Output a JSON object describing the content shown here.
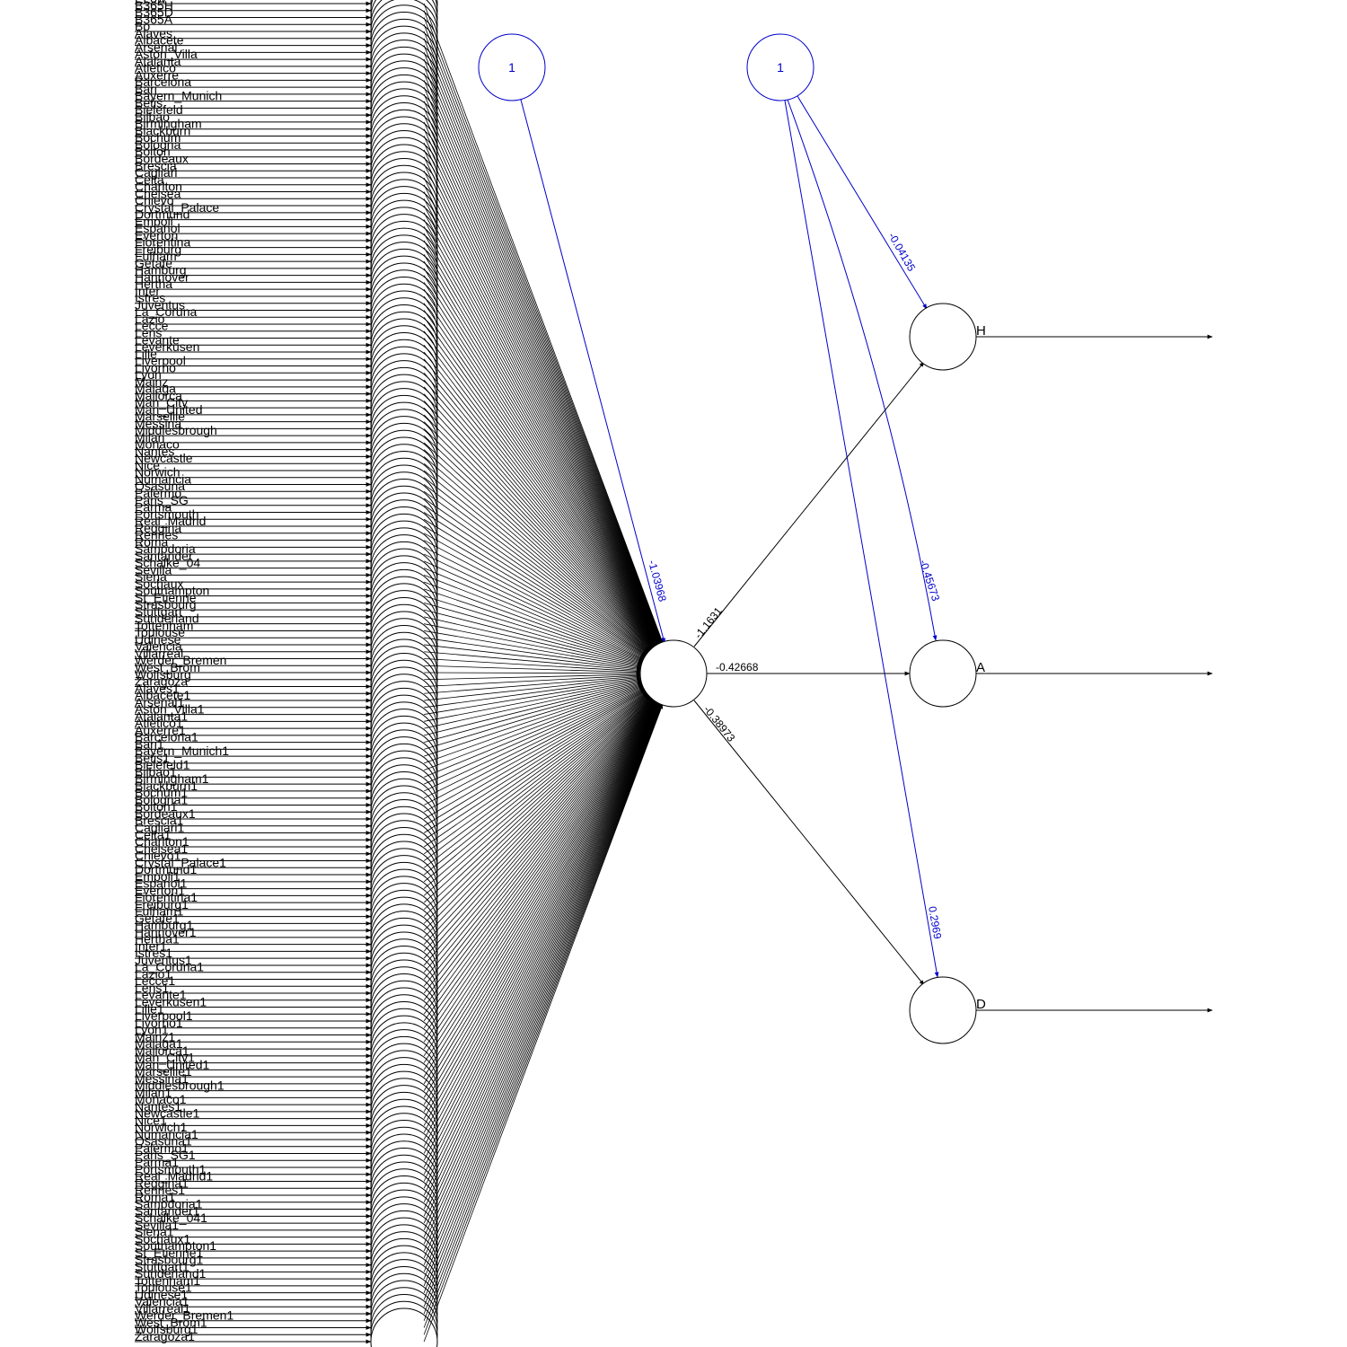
{
  "network": {
    "colors": {
      "synapse": "#000000",
      "bias": "#0000cc"
    },
    "inputs_group_1": [
      "ELow",
      "B365H",
      "B365D",
      "B365A",
      "Bo",
      "Alaves",
      "Albacete",
      "Arsenal",
      "Aston_Villa",
      "Atalanta",
      "Atletico",
      "Auxerre",
      "Barcelona",
      "Bari",
      "Bayern_Munich",
      "Betis",
      "Bielefeld",
      "Bilbao",
      "Birmingham",
      "Blackburn",
      "Bochum",
      "Bologna",
      "Bolton",
      "Bordeaux",
      "Brescia",
      "Cagliari",
      "Celta",
      "Charlton",
      "Chelsea",
      "Chievo",
      "Crystal_Palace",
      "Dortmund",
      "Empoli",
      "Espanol",
      "Everton",
      "Fiorentina",
      "Freiburg",
      "Fulham",
      "Getafe",
      "Hamburg",
      "Hannover",
      "Hertha",
      "Inter",
      "Istres",
      "Juventus",
      "La_Coruna",
      "Lazio",
      "Lecce",
      "Lens",
      "Levante",
      "Leverkusen",
      "Lille",
      "Liverpool",
      "Livorno",
      "Lyon",
      "Mainz",
      "Malaga",
      "Mallorca",
      "Man_City",
      "Man_United",
      "Marseille",
      "Messina",
      "Middlesbrough",
      "Milan",
      "Monaco",
      "Nantes",
      "Newcastle",
      "Nice",
      "Norwich",
      "Numancia",
      "Osasuna",
      "Palermo",
      "Paris_SG",
      "Parma",
      "Portsmouth",
      "Real_Madrid",
      "Reggina",
      "Rennes",
      "Roma",
      "Sampdoria",
      "Santander",
      "Schalke_04",
      "Sevilla",
      "Siena",
      "Sochaux",
      "Southampton",
      "St_Etienne",
      "Strasbourg",
      "Stuttgart",
      "Sunderland",
      "Tottenham",
      "Toulouse",
      "Udinese",
      "Valencia",
      "Villarreal",
      "Werder_Bremen",
      "West_Brom",
      "Wolfsburg",
      "Zaragoza"
    ],
    "inputs_group_2": [
      "Alaves1",
      "Albacete1",
      "Arsenal1",
      "Aston_Villa1",
      "Atalanta1",
      "Atletico1",
      "Auxerre1",
      "Barcelona1",
      "Bari1",
      "Bayern_Munich1",
      "Betis1",
      "Bielefeld1",
      "Bilbao1",
      "Birmingham1",
      "Blackburn1",
      "Bochum1",
      "Bologna1",
      "Bolton1",
      "Bordeaux1",
      "Brescia1",
      "Cagliari1",
      "Celta1",
      "Charlton1",
      "Chelsea1",
      "Chievo1",
      "Crystal_Palace1",
      "Dortmund1",
      "Empoli1",
      "Espanol1",
      "Everton1",
      "Fiorentina1",
      "Freiburg1",
      "Fulham1",
      "Getafe1",
      "Hamburg1",
      "Hannover1",
      "Hertha1",
      "Inter1",
      "Istres1",
      "Juventus1",
      "La_Coruna1",
      "Lazio1",
      "Lecce1",
      "Lens1",
      "Levante1",
      "Leverkusen1",
      "Lille1",
      "Liverpool1",
      "Livorno1",
      "Lyon1",
      "Mainz1",
      "Malaga1",
      "Mallorca1",
      "Man_City1",
      "Man_United1",
      "Marseille1",
      "Messina1",
      "Middlesbrough1",
      "Milan1",
      "Monaco1",
      "Nantes1",
      "Newcastle1",
      "Nice1",
      "Norwich1",
      "Numancia1",
      "Osasuna1",
      "Palermo1",
      "Paris_SG1",
      "Parma1",
      "Portsmouth1",
      "Real_Madrid1",
      "Reggina1",
      "Rennes1",
      "Roma1",
      "Sampdoria1",
      "Santander1",
      "Schalke_041",
      "Sevilla1",
      "Siena1",
      "Sochaux1",
      "Southampton1",
      "St_Etienne1",
      "Strasbourg1",
      "Stuttgart1",
      "Sunderland1",
      "Tottenham1",
      "Toulouse1",
      "Udinese1",
      "Valencia1",
      "Villarreal1",
      "Werder_Bremen1",
      "West_Brom1",
      "Wolfsburg1",
      "Zaragoza1"
    ],
    "bias_nodes": [
      {
        "label": "1"
      },
      {
        "label": "1"
      }
    ],
    "outputs": [
      {
        "name": "H",
        "weight_from_hidden": "-1.1631",
        "bias_weight": "-0.04135"
      },
      {
        "name": "A",
        "weight_from_hidden": "-0.42668",
        "bias_weight": "-0.45673"
      },
      {
        "name": "D",
        "weight_from_hidden": "-0.38973",
        "bias_weight": "0.2969"
      }
    ],
    "hidden_bias_weight": "-1.03968"
  }
}
